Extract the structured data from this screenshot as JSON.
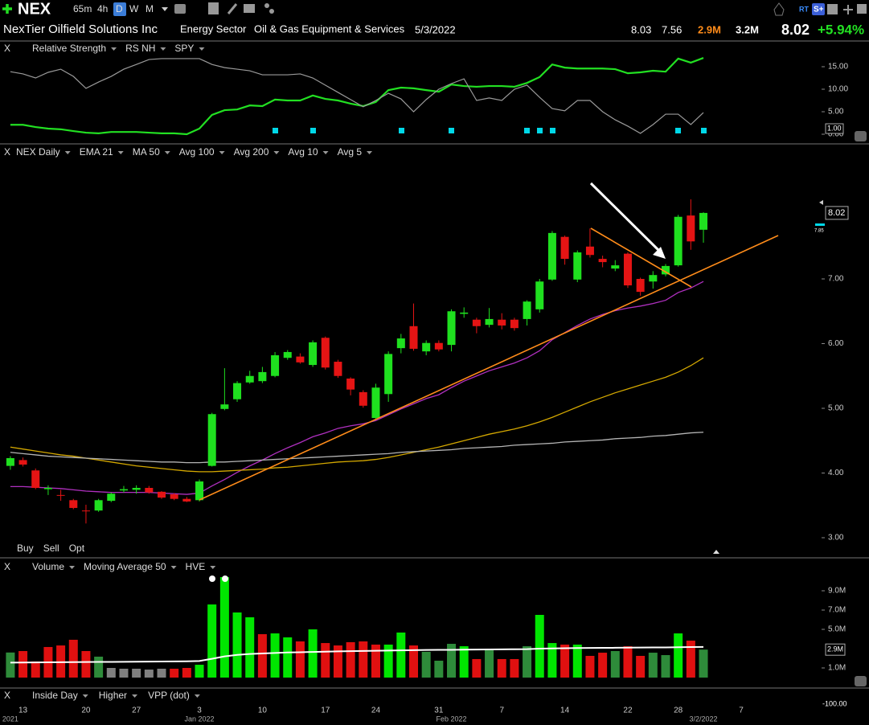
{
  "toolbar": {
    "symbol": "NEX",
    "timeframes": [
      "65m",
      "4h",
      "D",
      "W",
      "M"
    ],
    "badges": [
      "RT",
      "S+"
    ]
  },
  "header": {
    "name": "NexTier Oilfield Solutions Inc",
    "sector": "Energy Sector",
    "industry": "Oil & Gas Equipment & Services",
    "date": "5/3/2022",
    "high": "8.03",
    "low": "7.56",
    "volume": "2.9M",
    "avg_volume": "3.2M",
    "price": "8.02",
    "change": "+5.94%"
  },
  "panel_close": "X",
  "trade": [
    {
      "label": "Buy",
      "color": "#3a8dff"
    },
    {
      "label": "Sell",
      "color": "#ff2a2a"
    },
    {
      "label": "Opt",
      "color": "#bbbbbb"
    }
  ],
  "studies": [
    {
      "name": "Inside Day",
      "color": "#ffffff"
    },
    {
      "name": "Higher",
      "color": "#22e022"
    },
    {
      "name": "VPP (dot)",
      "color": "#ffffff"
    }
  ],
  "study_value": "-100.00",
  "chart_data": [
    {
      "type": "line",
      "ylim": [
        -1.5,
        17.5
      ],
      "yticks": [
        {
          "value": 0,
          "label": "0.00"
        },
        {
          "value": 5,
          "label": "5.00"
        },
        {
          "value": 10,
          "label": "10.00"
        },
        {
          "value": 15,
          "label": "15.00"
        }
      ],
      "value_box": "1.00",
      "series": [
        {
          "name": "Relative Strength",
          "color": "#22e022",
          "values": [
            2.1,
            2.1,
            1.6,
            1.25,
            1.1,
            0.7,
            0.35,
            0.2,
            0.5,
            0.5,
            0.5,
            0.35,
            0.2,
            0.2,
            0.0,
            1.25,
            4.3,
            5.35,
            5.5,
            6.4,
            6.25,
            7.7,
            7.5,
            7.5,
            8.6,
            7.85,
            7.5,
            6.8,
            6.25,
            7.15,
            9.8,
            10.35,
            10.2,
            9.8,
            9.45,
            11.05,
            10.7,
            10.55,
            10.7,
            10.7,
            10.55,
            11.4,
            12.7,
            15.5,
            14.8,
            14.6,
            14.6,
            14.6,
            14.45,
            13.55,
            13.75,
            14.1,
            13.9,
            16.8,
            15.9,
            16.95,
            null,
            null,
            null
          ]
        },
        {
          "name": "RS NH",
          "color": "#00d8e8"
        },
        {
          "name": "SPY",
          "color": "#9a9a9a",
          "values": [
            13.9,
            13.4,
            12.5,
            13.75,
            14.45,
            12.85,
            10.2,
            11.6,
            12.85,
            14.45,
            15.5,
            16.6,
            16.8,
            16.8,
            16.8,
            16.8,
            15.5,
            14.8,
            14.45,
            14.1,
            13.2,
            13.2,
            13.2,
            13.4,
            12.5,
            10.9,
            9.3,
            7.7,
            6.1,
            7.5,
            9.1,
            7.85,
            5.0,
            7.7,
            10.0,
            11.25,
            12.3,
            7.5,
            8.05,
            7.5,
            10.0,
            10.9,
            8.2,
            5.7,
            5.2,
            7.5,
            7.5,
            5.0,
            3.2,
            1.8,
            0.2,
            2.15,
            4.45,
            4.45,
            2.15,
            4.8,
            null,
            null,
            null
          ]
        }
      ]
    },
    {
      "type": "candlestick",
      "categories": [
        null,
        "13",
        null,
        null,
        null,
        null,
        "20",
        null,
        null,
        null,
        "27",
        null,
        null,
        null,
        null,
        "3",
        null,
        null,
        null,
        null,
        "10",
        null,
        null,
        null,
        null,
        "17",
        null,
        null,
        null,
        "24",
        null,
        null,
        null,
        null,
        "31",
        null,
        null,
        null,
        null,
        "7",
        null,
        null,
        null,
        null,
        "14",
        null,
        null,
        null,
        null,
        "22",
        null,
        null,
        null,
        "28",
        null,
        null,
        null,
        null,
        "7"
      ],
      "period_labels": [
        "2021",
        null,
        null,
        null,
        null,
        null,
        null,
        null,
        null,
        null,
        null,
        null,
        null,
        null,
        null,
        "Jan 2022",
        null,
        null,
        null,
        null,
        null,
        null,
        null,
        null,
        null,
        null,
        null,
        null,
        null,
        null,
        null,
        null,
        null,
        null,
        null,
        "Feb 2022",
        null,
        null,
        null,
        null,
        null,
        null,
        null,
        null,
        null,
        null,
        null,
        null,
        null,
        null,
        null,
        null,
        null,
        null,
        null,
        "3/2/2022",
        null,
        null,
        null
      ],
      "open": [
        4.11,
        4.2,
        4.04,
        3.75,
        3.66,
        3.58,
        3.42,
        3.42,
        3.57,
        3.73,
        3.74,
        3.77,
        3.71,
        3.67,
        3.6,
        3.58,
        4.11,
        4.99,
        5.14,
        5.4,
        5.42,
        5.5,
        5.78,
        5.8,
        5.67,
        6.09,
        5.72,
        5.46,
        5.25,
        4.85,
        5.22,
        5.93,
        6.27,
        5.88,
        6.01,
        5.98,
        6.46,
        6.37,
        6.29,
        6.37,
        6.37,
        6.38,
        6.53,
        6.99,
        7.65,
        6.99,
        7.5,
        7.31,
        7.16,
        7.39,
        7.0,
        6.96,
        7.07,
        7.21,
        7.98,
        7.76,
        null,
        null,
        null
      ],
      "high": [
        4.26,
        4.24,
        4.07,
        3.81,
        3.74,
        3.6,
        3.51,
        3.6,
        3.7,
        3.8,
        3.81,
        3.8,
        3.72,
        3.69,
        3.63,
        3.9,
        4.93,
        5.62,
        5.42,
        5.58,
        5.64,
        5.87,
        5.9,
        5.85,
        6.05,
        6.11,
        5.75,
        5.48,
        5.28,
        5.38,
        5.88,
        6.15,
        6.62,
        6.05,
        6.05,
        6.53,
        6.56,
        6.4,
        6.55,
        6.47,
        6.4,
        6.67,
        7.0,
        7.74,
        7.67,
        7.44,
        7.78,
        7.36,
        7.29,
        7.41,
        7.02,
        7.12,
        7.23,
        7.99,
        8.23,
        8.03,
        null,
        null,
        null
      ],
      "low": [
        4.05,
        4.1,
        3.75,
        3.66,
        3.57,
        3.44,
        3.22,
        3.4,
        3.55,
        3.7,
        3.68,
        3.68,
        3.6,
        3.58,
        3.55,
        3.56,
        4.1,
        4.97,
        5.1,
        5.38,
        5.39,
        5.48,
        5.75,
        5.69,
        5.64,
        5.6,
        5.47,
        5.2,
        5.01,
        4.82,
        5.1,
        5.85,
        5.89,
        5.82,
        5.88,
        5.88,
        6.4,
        6.16,
        6.25,
        6.22,
        6.2,
        6.28,
        6.48,
        6.97,
        7.22,
        6.95,
        7.33,
        7.18,
        7.12,
        6.86,
        6.74,
        6.85,
        7.04,
        7.19,
        7.45,
        7.56,
        null,
        null,
        null
      ],
      "close": [
        4.23,
        4.13,
        3.77,
        3.77,
        3.65,
        3.46,
        3.41,
        3.58,
        3.68,
        3.75,
        3.77,
        3.7,
        3.62,
        3.6,
        3.56,
        3.87,
        4.91,
        5.06,
        5.39,
        5.5,
        5.56,
        5.82,
        5.87,
        5.71,
        6.02,
        5.63,
        5.5,
        5.29,
        5.04,
        5.32,
        5.84,
        6.08,
        5.92,
        6.01,
        5.91,
        6.5,
        6.48,
        6.27,
        6.38,
        6.28,
        6.24,
        6.65,
        6.96,
        7.71,
        7.31,
        7.41,
        7.37,
        7.26,
        7.21,
        6.9,
        6.8,
        7.06,
        7.2,
        7.96,
        7.58,
        8.02,
        null,
        null,
        null
      ],
      "up_color": "#1fe01f",
      "down_color": "#e51414",
      "ylim": [
        2.75,
        8.85
      ],
      "yticks": [
        {
          "value": 3,
          "label": "3.00"
        },
        {
          "value": 4,
          "label": "4.00"
        },
        {
          "value": 5,
          "label": "5.00"
        },
        {
          "value": 6,
          "label": "6.00"
        },
        {
          "value": 7,
          "label": "7.00"
        }
      ],
      "price_marker": "7.85",
      "series": [
        {
          "name": "NEX Daily",
          "color": "#22dd22"
        },
        {
          "name": "EMA 21",
          "color": "#b030c0",
          "values": [
            3.79,
            3.79,
            3.78,
            3.77,
            3.76,
            3.74,
            3.72,
            3.71,
            3.7,
            3.7,
            3.7,
            3.7,
            3.69,
            3.68,
            3.67,
            3.69,
            3.8,
            3.9,
            4.01,
            4.11,
            4.2,
            4.3,
            4.39,
            4.47,
            4.56,
            4.62,
            4.69,
            4.73,
            4.76,
            4.81,
            4.9,
            4.99,
            5.07,
            5.15,
            5.21,
            5.32,
            5.42,
            5.5,
            5.58,
            5.64,
            5.7,
            5.78,
            5.89,
            6.06,
            6.17,
            6.28,
            6.38,
            6.45,
            6.51,
            6.55,
            6.58,
            6.62,
            6.67,
            6.79,
            6.86,
            6.96,
            null,
            null,
            null
          ]
        },
        {
          "name": "MA 50",
          "color": "#d4a800",
          "values": [
            4.4,
            4.37,
            4.34,
            4.31,
            4.28,
            4.26,
            4.23,
            4.2,
            4.17,
            4.14,
            4.11,
            4.09,
            4.07,
            4.05,
            4.03,
            4.02,
            4.02,
            4.03,
            4.04,
            4.05,
            4.06,
            4.08,
            4.09,
            4.11,
            4.13,
            4.15,
            4.17,
            4.18,
            4.19,
            4.21,
            4.24,
            4.28,
            4.32,
            4.36,
            4.4,
            4.45,
            4.5,
            4.55,
            4.6,
            4.64,
            4.68,
            4.73,
            4.79,
            4.86,
            4.94,
            5.02,
            5.1,
            5.17,
            5.24,
            5.3,
            5.36,
            5.42,
            5.48,
            5.56,
            5.66,
            5.78,
            null,
            null,
            null
          ]
        },
        {
          "name": "Avg 100",
          "color": "#ff8c1a"
        },
        {
          "name": "Avg 200",
          "color": "#b4b4b4",
          "values": [
            4.32,
            4.3,
            4.28,
            4.26,
            4.25,
            4.24,
            4.23,
            4.22,
            4.21,
            4.2,
            4.19,
            4.18,
            4.17,
            4.17,
            4.16,
            4.16,
            4.17,
            4.17,
            4.18,
            4.19,
            4.2,
            4.21,
            4.22,
            4.23,
            4.24,
            4.25,
            4.26,
            4.27,
            4.28,
            4.29,
            4.3,
            4.32,
            4.33,
            4.34,
            4.35,
            4.36,
            4.38,
            4.39,
            4.4,
            4.41,
            4.43,
            4.44,
            4.45,
            4.46,
            4.48,
            4.49,
            4.5,
            4.51,
            4.53,
            4.54,
            4.55,
            4.57,
            4.58,
            4.6,
            4.62,
            4.63,
            null,
            null,
            null
          ]
        },
        {
          "name": "Avg 10",
          "color": "#e090ff"
        },
        {
          "name": "Avg 5",
          "color": "#1a9a9a"
        }
      ]
    },
    {
      "type": "bar",
      "ylim": [
        -1,
        10.5
      ],
      "yticks": [
        {
          "value": 1,
          "label": "1.0M"
        },
        {
          "value": 5,
          "label": "5.0M"
        },
        {
          "value": 7,
          "label": "7.0M"
        },
        {
          "value": 9,
          "label": "9.0M"
        }
      ],
      "series": [
        {
          "name": "Volume",
          "color": "#22e022",
          "values": [
            2.6,
            2.75,
            1.67,
            3.17,
            3.33,
            3.92,
            2.75,
            2.17,
            1.0,
            0.92,
            0.92,
            0.83,
            0.92,
            0.92,
            1.0,
            1.33,
            7.58,
            10.42,
            6.75,
            6.25,
            4.5,
            4.58,
            4.17,
            3.75,
            5.0,
            3.58,
            3.33,
            3.67,
            3.75,
            3.42,
            3.42,
            4.67,
            3.33,
            2.67,
            1.75,
            3.5,
            3.25,
            1.92,
            3.0,
            1.92,
            1.92,
            3.25,
            6.5,
            3.58,
            3.42,
            3.42,
            2.25,
            2.58,
            2.75,
            3.25,
            2.25,
            2.58,
            2.33,
            4.58,
            3.83,
            2.9,
            null,
            null,
            null
          ],
          "colors": [
            "#2e8b3a",
            "#e01010",
            "#e01010",
            "#e01010",
            "#e01010",
            "#e01010",
            "#e01010",
            "#2e8b3a",
            "#808080",
            "#808080",
            "#808080",
            "#808080",
            "#808080",
            "#e01010",
            "#e01010",
            "#00e600",
            "#00e600",
            "#00e600",
            "#00e600",
            "#00e600",
            "#e01010",
            "#00e600",
            "#00e600",
            "#e01010",
            "#00e600",
            "#e01010",
            "#e01010",
            "#e01010",
            "#e01010",
            "#e01010",
            "#00e600",
            "#00e600",
            "#e01010",
            "#2e8b3a",
            "#2e8b3a",
            "#2e8b3a",
            "#00e600",
            "#e01010",
            "#2e8b3a",
            "#e01010",
            "#e01010",
            "#2e8b3a",
            "#00e600",
            "#00e600",
            "#e01010",
            "#00e600",
            "#e01010",
            "#e01010",
            "#2e8b3a",
            "#e01010",
            "#e01010",
            "#2e8b3a",
            "#2e8b3a",
            "#00e600",
            "#e01010",
            "#2e8b3a",
            null,
            null,
            null
          ],
          "value_labels": [
            null,
            null,
            null,
            null,
            null,
            null,
            null,
            null,
            null,
            null,
            null,
            null,
            null,
            null,
            null,
            null,
            null,
            null,
            null,
            null,
            null,
            null,
            null,
            null,
            null,
            null,
            null,
            null,
            null,
            null,
            null,
            null,
            null,
            null,
            null,
            null,
            null,
            null,
            null,
            null,
            null,
            null,
            null,
            null,
            null,
            null,
            null,
            null,
            null,
            null,
            null,
            null,
            null,
            null,
            null,
            "2.9M",
            null,
            null,
            null
          ]
        },
        {
          "name": "Moving Average 50",
          "color": "#ffffff",
          "type": "line",
          "values": [
            1.55,
            1.56,
            1.57,
            1.58,
            1.59,
            1.6,
            1.61,
            1.62,
            1.63,
            1.64,
            1.65,
            1.66,
            1.67,
            1.68,
            1.69,
            1.72,
            1.95,
            2.2,
            2.35,
            2.45,
            2.5,
            2.55,
            2.6,
            2.63,
            2.66,
            2.69,
            2.72,
            2.74,
            2.76,
            2.78,
            2.8,
            2.82,
            2.84,
            2.86,
            2.87,
            2.88,
            2.9,
            2.91,
            2.92,
            2.93,
            2.94,
            2.95,
            3.0,
            3.02,
            3.04,
            3.06,
            3.07,
            3.08,
            3.09,
            3.1,
            3.11,
            3.12,
            3.13,
            3.15,
            3.17,
            3.18,
            null,
            null,
            null
          ]
        },
        {
          "name": "HVE",
          "color": "#ffffff"
        }
      ]
    }
  ]
}
